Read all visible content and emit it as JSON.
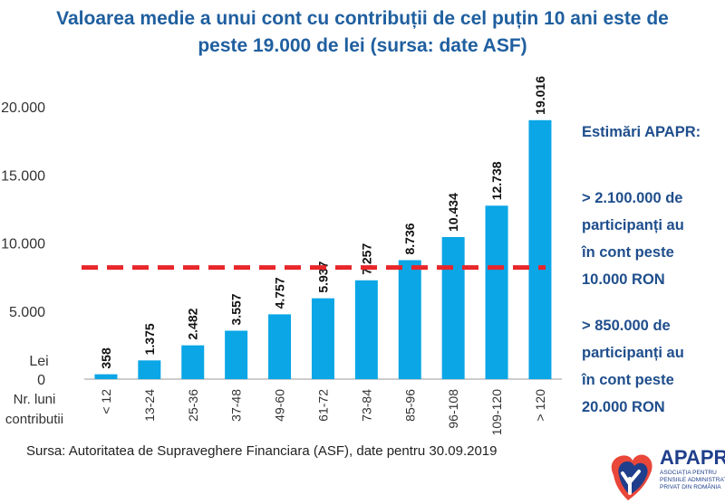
{
  "title": "Valoarea medie a unui cont cu contribuții de cel puțin 10 ani este de peste 19.000 de lei (sursa: date ASF)",
  "chart_data": {
    "type": "bar",
    "categories": [
      "< 12",
      "13-24",
      "25-36",
      "37-48",
      "49-60",
      "61-72",
      "73-84",
      "85-96",
      "96-108",
      "109-120",
      "> 120"
    ],
    "values": [
      358,
      1375,
      2482,
      3557,
      4757,
      5937,
      7257,
      8736,
      10434,
      12738,
      19016
    ],
    "value_labels": [
      "358",
      "1.375",
      "2.482",
      "3.557",
      "4.757",
      "5.937",
      "7.257",
      "8.736",
      "10.434",
      "12.738",
      "19.016"
    ],
    "ylabel": "Lei",
    "xlabel": "Nr. luni contributii",
    "yticks": [
      0,
      5000,
      10000,
      15000,
      20000
    ],
    "ytick_labels": [
      "0",
      "5.000",
      "10.000",
      "15.000",
      "20.000"
    ],
    "ylim": [
      0,
      20000
    ],
    "reference_line": {
      "value": 8200,
      "style": "dashed",
      "color": "#e8262a"
    },
    "bar_color": "#0aa6e6",
    "grid": false
  },
  "side_panel": {
    "heading": "Estimări APAPR:",
    "note1": [
      "> 2.100.000 de",
      "participanți au",
      "în cont peste",
      "10.000 RON"
    ],
    "note2": [
      "> 850.000 de",
      "participanți au",
      "în cont peste",
      "20.000 RON"
    ]
  },
  "source": "Sursa: Autoritatea de Supraveghere Financiara (ASF), date pentru 30.09.2019",
  "logo": {
    "name": "APAPR",
    "subtitle": "ASOCIAȚIA PENTRU PENSIILE ADMINISTRATE PRIVAT DIN ROMÂNIA"
  }
}
